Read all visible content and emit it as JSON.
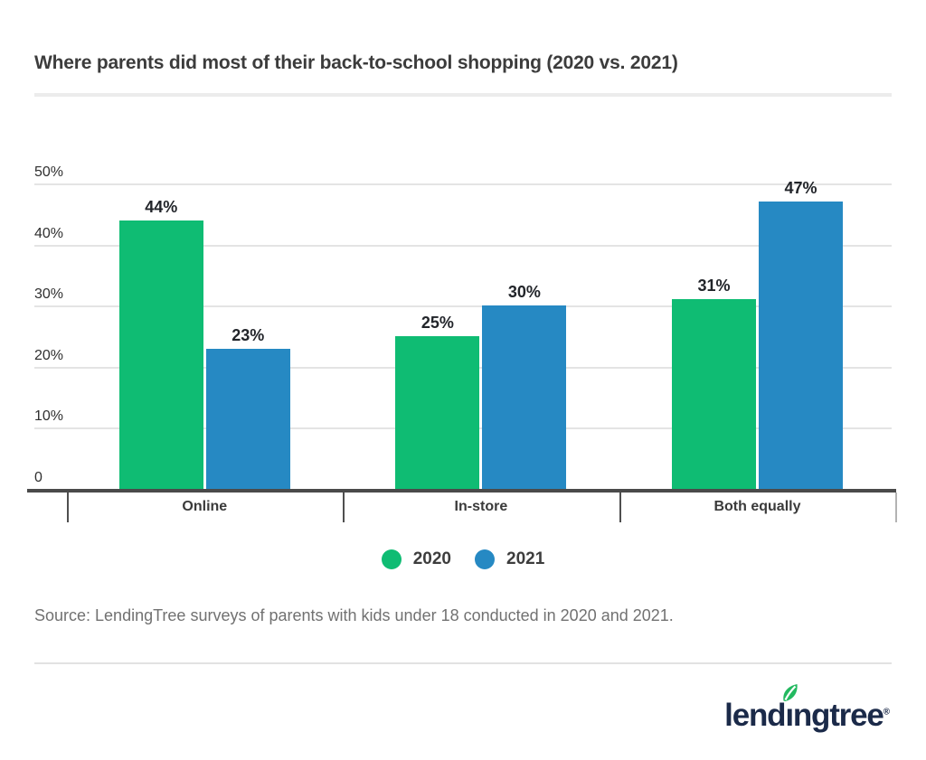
{
  "title": "Where parents did most of their back-to-school shopping (2020 vs. 2021)",
  "chart_data": {
    "type": "bar",
    "title": "Where parents did most of their back-to-school shopping (2020 vs. 2021)",
    "categories": [
      "Online",
      "In-store",
      "Both equally"
    ],
    "series": [
      {
        "name": "2020",
        "color": "#0fbc73",
        "values": [
          44,
          25,
          31
        ],
        "labels": [
          "44%",
          "25%",
          "31%"
        ]
      },
      {
        "name": "2021",
        "color": "#2689c3",
        "values": [
          23,
          30,
          47
        ],
        "labels": [
          "23%",
          "30%",
          "47%"
        ]
      }
    ],
    "xlabel": "",
    "ylabel": "",
    "ylim": [
      0,
      50
    ],
    "ytick_values": [
      50,
      40,
      30,
      20,
      10,
      0
    ],
    "yticks": [
      "50%",
      "40%",
      "30%",
      "20%",
      "10%",
      "0"
    ],
    "grid": true,
    "legend_position": "bottom"
  },
  "legend": [
    {
      "label": "2020",
      "color": "#0fbc73"
    },
    {
      "label": "2021",
      "color": "#2689c3"
    }
  ],
  "source": "Source: LendingTree surveys of parents with kids under 18 conducted in 2020 and 2021.",
  "logo": {
    "text_pre": "lend",
    "text_i": "ı",
    "text_post": "ngtree",
    "registered": "®",
    "leaf_color": "#23b960",
    "text_color": "#1b2a49"
  },
  "colors": {
    "series_2020": "#0fbc73",
    "series_2021": "#2689c3",
    "axis": "#4a4a4a",
    "gridline": "#e4e4e4",
    "title_text": "#3c3c3c",
    "source_text": "#717171",
    "logo_navy": "#1b2a49"
  }
}
